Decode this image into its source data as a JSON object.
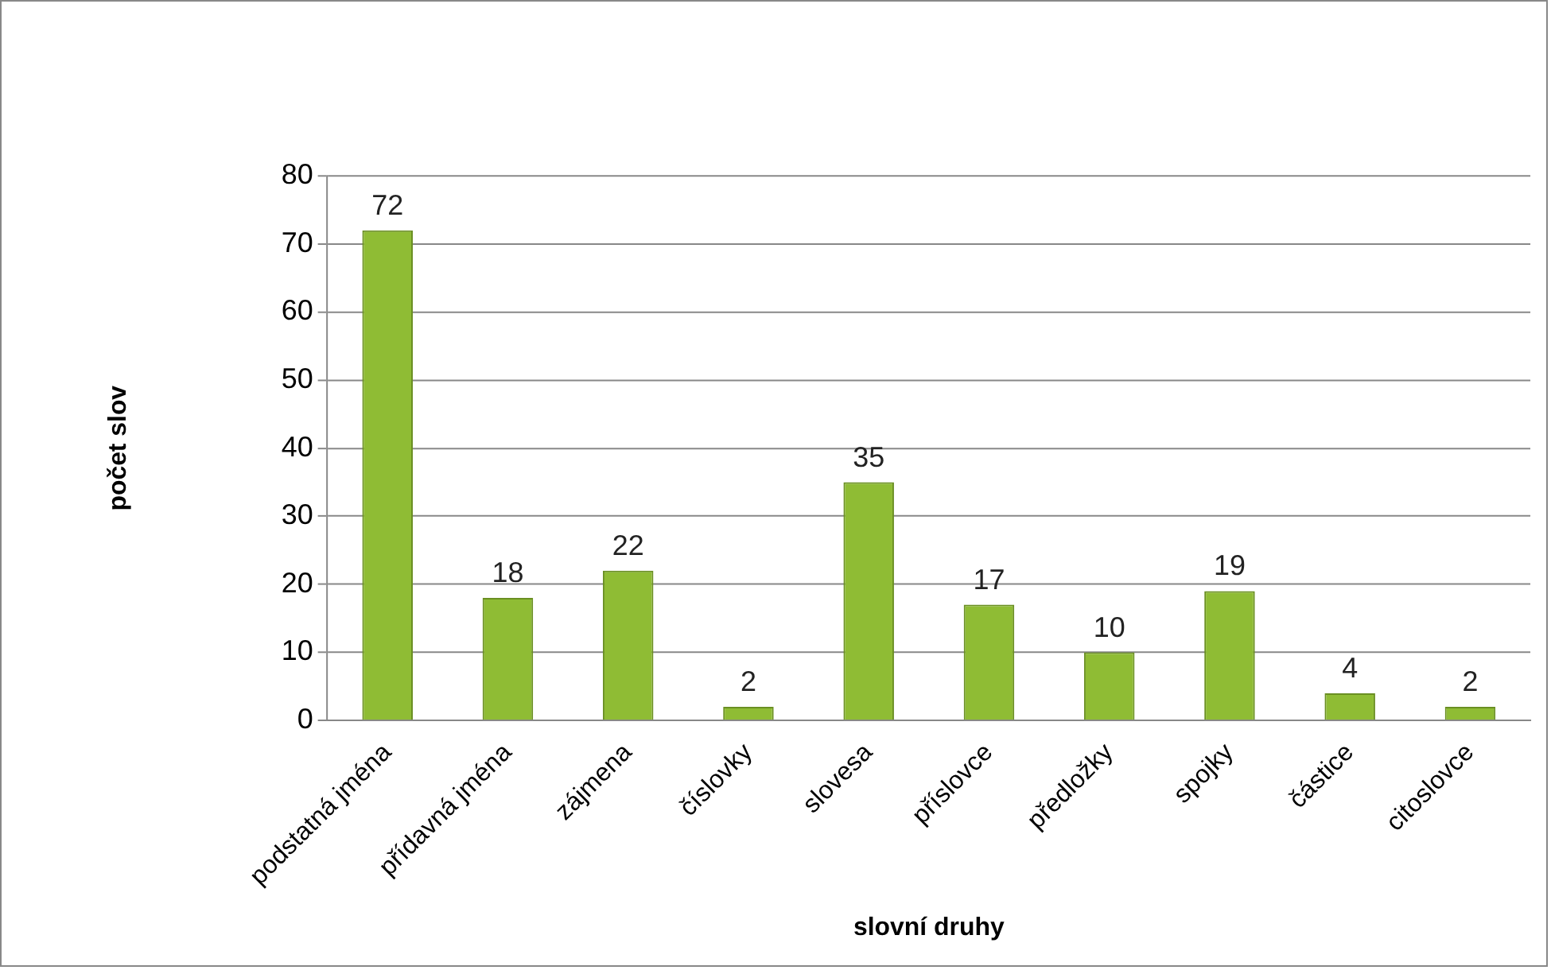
{
  "chart_data": {
    "type": "bar",
    "xlabel": "slovní druhy",
    "ylabel": "počet slov",
    "categories": [
      "podstatná jména",
      "přídavná jména",
      "zájmena",
      "číslovky",
      "slovesa",
      "příslovce",
      "předložky",
      "spojky",
      "částice",
      "citoslovce"
    ],
    "values": [
      72,
      18,
      22,
      2,
      35,
      17,
      10,
      19,
      4,
      2
    ],
    "color": "#8fbc34",
    "ylim": [
      0,
      80
    ],
    "yticks": [
      0,
      10,
      20,
      30,
      40,
      50,
      60,
      70,
      80
    ],
    "grid": "y",
    "data_labels": true,
    "legend": false
  }
}
